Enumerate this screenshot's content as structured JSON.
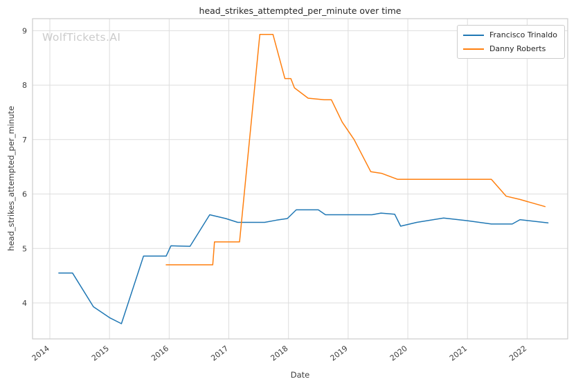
{
  "watermark": "WolfTickets.AI",
  "chart_data": {
    "type": "line",
    "title": "head_strikes_attempted_per_minute over time",
    "xlabel": "Date",
    "ylabel": "head_strikes_attempted_per_minute",
    "xlim": [
      2013.71,
      2022.68
    ],
    "ylim": [
      3.34,
      9.22
    ],
    "xticks": [
      2014,
      2015,
      2016,
      2017,
      2018,
      2019,
      2020,
      2021,
      2022
    ],
    "yticks": [
      4,
      5,
      6,
      7,
      8,
      9
    ],
    "grid": true,
    "legend_position": "upper right",
    "style": {
      "background": "#ffffff",
      "grid_color": "#dddddd",
      "spine_color": "#cccccc",
      "tick_color": "#3d3d3d",
      "title_color": "#262626",
      "watermark_color": "#cbcbcb"
    },
    "series": [
      {
        "name": "Francisco Trinaldo",
        "color": "#1f77b4",
        "x": [
          2014.15,
          2014.38,
          2014.73,
          2015.0,
          2015.2,
          2015.57,
          2015.95,
          2016.03,
          2016.35,
          2016.68,
          2016.95,
          2017.15,
          2017.6,
          2017.8,
          2017.98,
          2018.13,
          2018.5,
          2018.62,
          2019.4,
          2019.55,
          2019.78,
          2019.88,
          2020.15,
          2020.6,
          2021.0,
          2021.4,
          2021.75,
          2021.88,
          2022.35
        ],
        "y": [
          4.55,
          4.55,
          3.93,
          3.73,
          3.62,
          4.86,
          4.86,
          5.05,
          5.04,
          5.62,
          5.55,
          5.48,
          5.48,
          5.52,
          5.55,
          5.71,
          5.71,
          5.62,
          5.62,
          5.65,
          5.63,
          5.41,
          5.48,
          5.56,
          5.51,
          5.45,
          5.45,
          5.53,
          5.47
        ]
      },
      {
        "name": "Danny Roberts",
        "color": "#ff7f0e",
        "x": [
          2015.95,
          2016.73,
          2016.76,
          2017.18,
          2017.52,
          2017.74,
          2017.94,
          2018.04,
          2018.1,
          2018.33,
          2018.6,
          2018.72,
          2018.9,
          2019.1,
          2019.38,
          2019.56,
          2019.83,
          2021.4,
          2021.65,
          2021.88,
          2022.3
        ],
        "y": [
          4.7,
          4.7,
          5.12,
          5.12,
          8.93,
          8.93,
          8.12,
          8.12,
          7.95,
          7.76,
          7.73,
          7.73,
          7.32,
          7.0,
          6.41,
          6.38,
          6.27,
          6.27,
          5.96,
          5.9,
          5.77
        ]
      }
    ]
  }
}
